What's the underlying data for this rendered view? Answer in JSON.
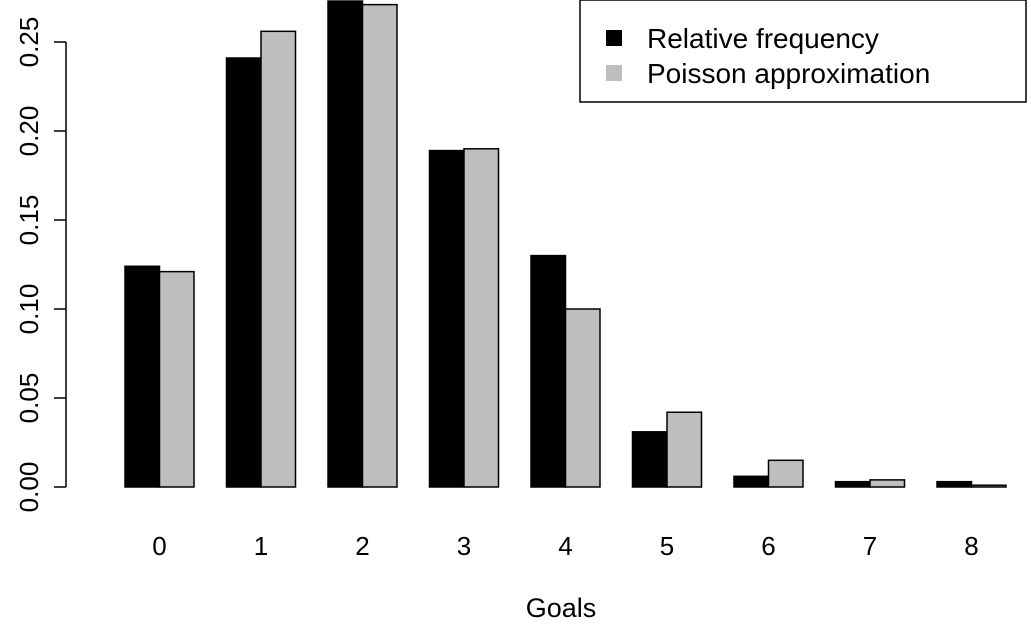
{
  "chart_data": {
    "type": "bar",
    "xlabel": "Goals",
    "ylabel": "",
    "categories": [
      "0",
      "1",
      "2",
      "3",
      "4",
      "5",
      "6",
      "7",
      "8"
    ],
    "series": [
      {
        "name": "Relative frequency",
        "color": "#000000",
        "values": [
          0.124,
          0.241,
          0.273,
          0.189,
          0.13,
          0.031,
          0.006,
          0.003,
          0.003
        ]
      },
      {
        "name": "Poisson approximation",
        "color": "#bebebe",
        "values": [
          0.121,
          0.256,
          0.271,
          0.19,
          0.1,
          0.042,
          0.015,
          0.004,
          0.001
        ]
      }
    ],
    "yticks": [
      0.0,
      0.05,
      0.1,
      0.15,
      0.2,
      0.25
    ],
    "ytick_labels": [
      "0.00",
      "0.05",
      "0.10",
      "0.15",
      "0.20",
      "0.25"
    ],
    "ylim": [
      0,
      0.275
    ],
    "grid": false,
    "legend_position": "top-right"
  }
}
